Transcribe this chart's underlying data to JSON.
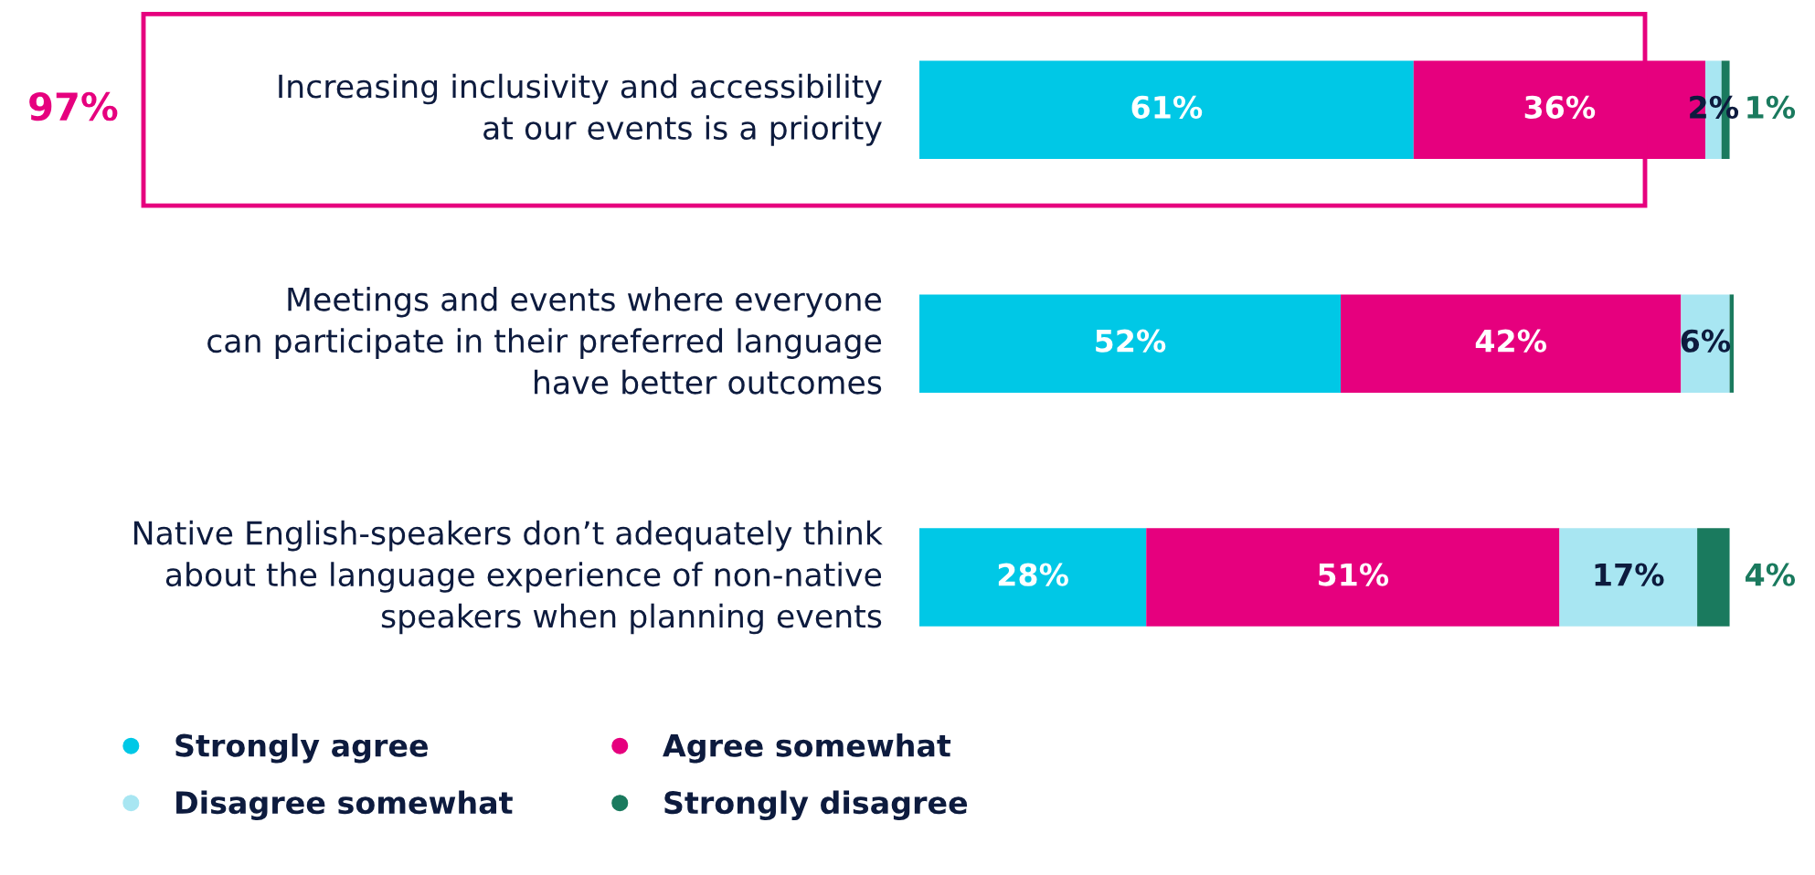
{
  "chart_data": {
    "type": "bar",
    "orientation": "horizontal",
    "stacked": true,
    "categories": [
      "Increasing inclusivity and accessibility\nat our events is a priority",
      "Meetings and events where everyone\ncan participate in their preferred language\nhave better outcomes",
      "Native English-speakers don’t adequately think\nabout the language experience of non-native\nspeakers when planning events"
    ],
    "series": [
      {
        "name": "Strongly agree",
        "color": "#00c8e6",
        "values": [
          61,
          52,
          28
        ],
        "value_labels": [
          "61%",
          "52%",
          "28%"
        ]
      },
      {
        "name": "Agree somewhat",
        "color": "#e6007e",
        "values": [
          36,
          42,
          51
        ],
        "value_labels": [
          "36%",
          "42%",
          "51%"
        ]
      },
      {
        "name": "Disagree somewhat",
        "color": "#a8e6f2",
        "values": [
          2,
          6,
          17
        ],
        "value_labels": [
          "2%",
          "6%",
          "17%"
        ]
      },
      {
        "name": "Strongly disagree",
        "color": "#1a7a5e",
        "values": [
          1,
          0.5,
          4
        ],
        "value_labels": [
          "1%",
          null,
          "4%"
        ]
      }
    ],
    "annotations": [
      "97%"
    ],
    "legend": "bottom left"
  }
}
